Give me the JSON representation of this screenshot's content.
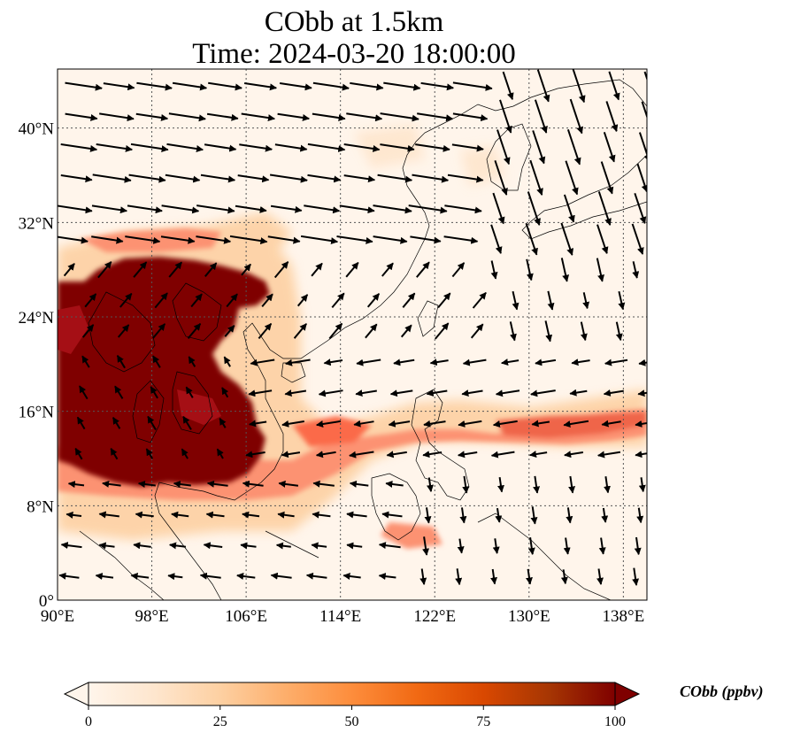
{
  "title": {
    "line1": "CObb at 1.5km",
    "line2": "Time: 2024-03-20 18:00:00"
  },
  "map": {
    "projection": "PlateCarree",
    "lon_range": [
      90,
      140
    ],
    "lat_range": [
      0,
      45
    ],
    "gridlines": "dotted",
    "x_ticks": [
      {
        "lon": 90,
        "label": "90°E"
      },
      {
        "lon": 98,
        "label": "98°E"
      },
      {
        "lon": 106,
        "label": "106°E"
      },
      {
        "lon": 114,
        "label": "114°E"
      },
      {
        "lon": 122,
        "label": "122°E"
      },
      {
        "lon": 130,
        "label": "130°E"
      },
      {
        "lon": 138,
        "label": "138°E"
      }
    ],
    "y_ticks": [
      {
        "lat": 0,
        "label": "0°"
      },
      {
        "lat": 8,
        "label": "8°N"
      },
      {
        "lat": 16,
        "label": "16°N"
      },
      {
        "lat": 24,
        "label": "24°N"
      },
      {
        "lat": 32,
        "label": "32°N"
      },
      {
        "lat": 40,
        "label": "40°N"
      }
    ],
    "background_color": "#fff5eb",
    "grid_color": "#555555",
    "high_region_color": "#7f0000",
    "mid_region_color": "#e34a33",
    "low_region_color": "#fdd0a2",
    "wind_vectors": "black quiver arrows"
  },
  "colorbar": {
    "label": "CObb (ppbv)",
    "min": 0,
    "max": 100,
    "extend": "both",
    "ticks": [
      {
        "value": 0,
        "label": "0"
      },
      {
        "value": 25,
        "label": "25"
      },
      {
        "value": 50,
        "label": "50"
      },
      {
        "value": 75,
        "label": "75"
      },
      {
        "value": 100,
        "label": "100"
      }
    ],
    "colors": [
      "#fff5eb",
      "#fee6ce",
      "#fdd0a2",
      "#fdae6b",
      "#fd8d3c",
      "#f16913",
      "#d94801",
      "#a63603",
      "#7f0000"
    ]
  }
}
